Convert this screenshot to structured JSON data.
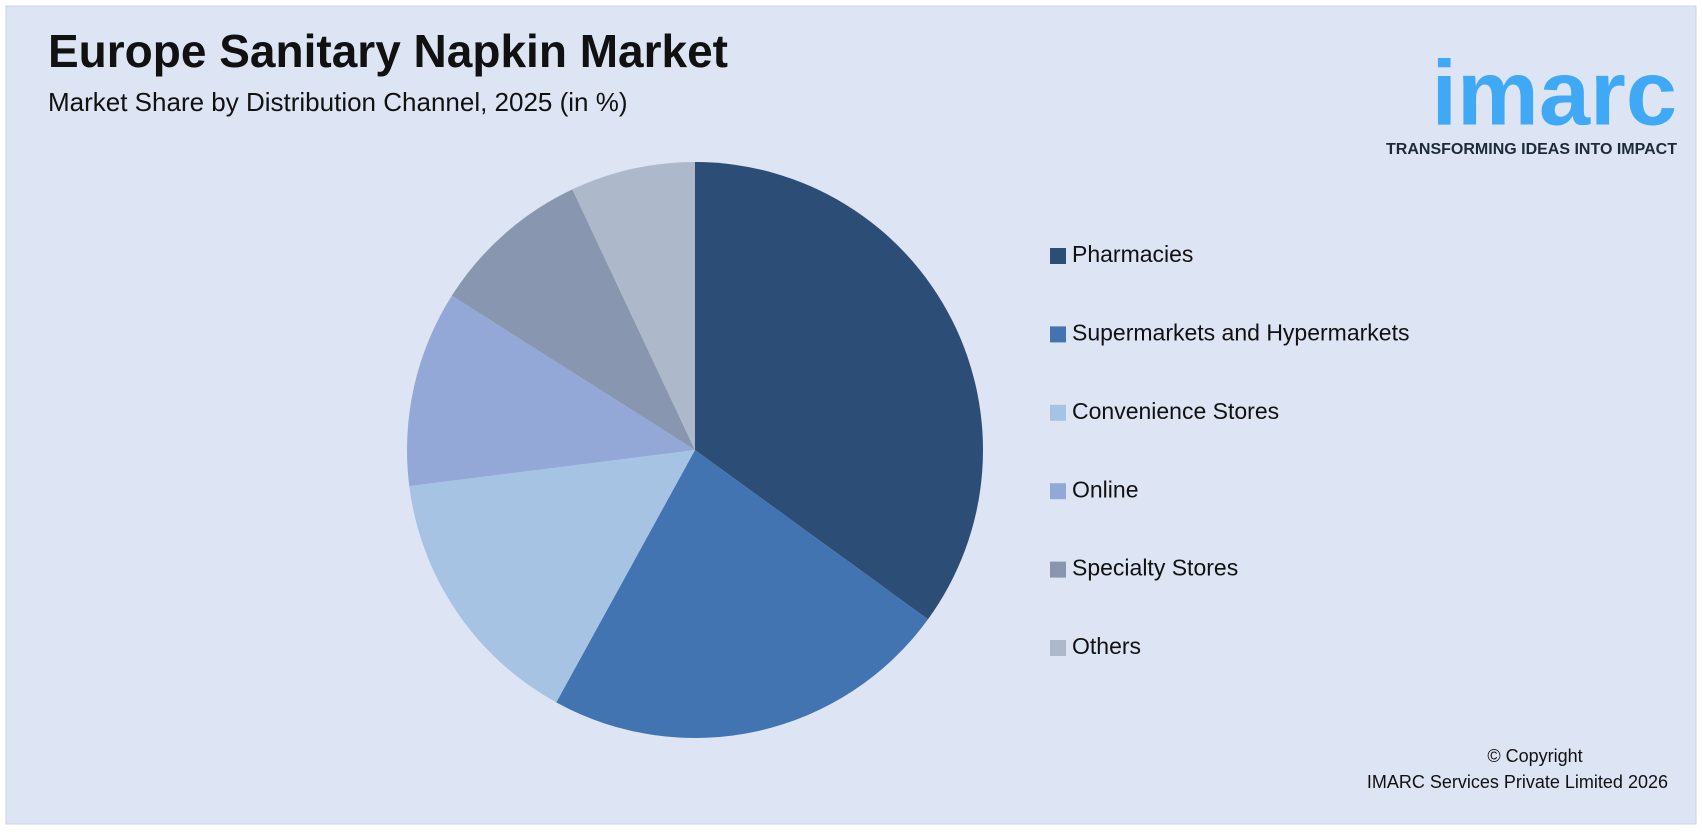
{
  "chart_data": {
    "type": "pie",
    "title": "Europe Sanitary Napkin Market",
    "subtitle": "Market Share by Distribution Channel, 2025 (in %)",
    "categories": [
      "Pharmacies",
      "Supermarkets and Hypermarkets",
      "Convenience Stores",
      "Online",
      "Specialty Stores",
      "Others"
    ],
    "values": [
      35,
      23,
      15,
      11,
      9,
      7
    ],
    "colors": [
      "#2c4d75",
      "#4174b0",
      "#a7c3e3",
      "#94a8d8",
      "#8897af",
      "#adb9ca"
    ],
    "legend": "right"
  },
  "branding": {
    "logo": "imarc",
    "tagline": "TRANSFORMING IDEAS INTO IMPACT",
    "copyright": [
      "© Copyright",
      "IMARC Services Private Limited 2026"
    ]
  }
}
